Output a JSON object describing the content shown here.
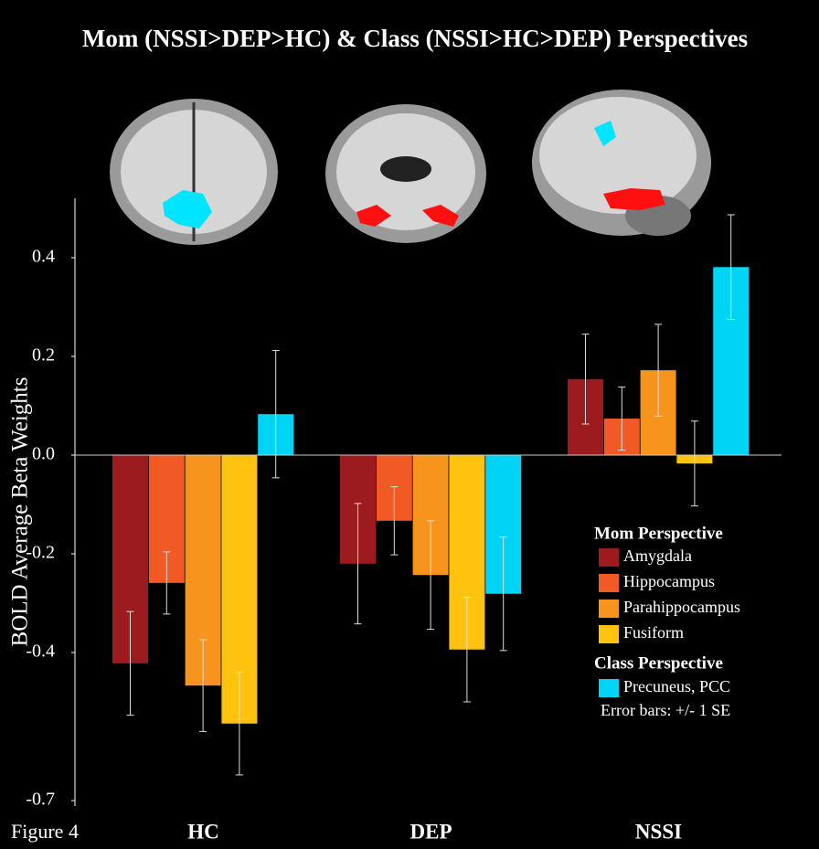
{
  "chart_data": {
    "type": "bar",
    "title": "Mom (NSSI>DEP>HC) & Class (NSSI>HC>DEP) Perspectives",
    "y_label": "BOLD Average Beta Weights",
    "caption": "Figure 4",
    "categories": [
      "HC",
      "DEP",
      "NSSI"
    ],
    "ylim": [
      -0.71,
      0.52
    ],
    "yticks": [
      0.4,
      0.2,
      {
        "value": 0,
        "label": "0.0"
      },
      -0.2,
      -0.4,
      -0.7
    ],
    "legend_headings": [
      "Mom Perspective",
      "Class Perspective"
    ],
    "annotation": "Error bars: +/- 1 SE",
    "series": [
      {
        "name": "Amygdala",
        "color": "#9b1b1e",
        "values": [
          -0.422,
          -0.22,
          0.154
        ],
        "errors": [
          0.105,
          0.122,
          0.091
        ]
      },
      {
        "name": "Hippocampus",
        "color": "#f15a24",
        "values": [
          -0.259,
          -0.133,
          0.074
        ],
        "errors": [
          0.063,
          0.069,
          0.064
        ]
      },
      {
        "name": "Parahippocampus",
        "color": "#f7941d",
        "values": [
          -0.467,
          -0.243,
          0.172
        ],
        "errors": [
          0.093,
          0.11,
          0.093
        ]
      },
      {
        "name": "Fusiform",
        "color": "#ffc20e",
        "values": [
          -0.544,
          -0.394,
          -0.017
        ],
        "errors": [
          0.104,
          0.106,
          0.086
        ]
      },
      {
        "name": "Precuneus, PCC",
        "color": "#00d4f5",
        "values": [
          0.083,
          -0.281,
          0.381
        ],
        "errors": [
          0.129,
          0.115,
          0.106
        ]
      }
    ]
  }
}
